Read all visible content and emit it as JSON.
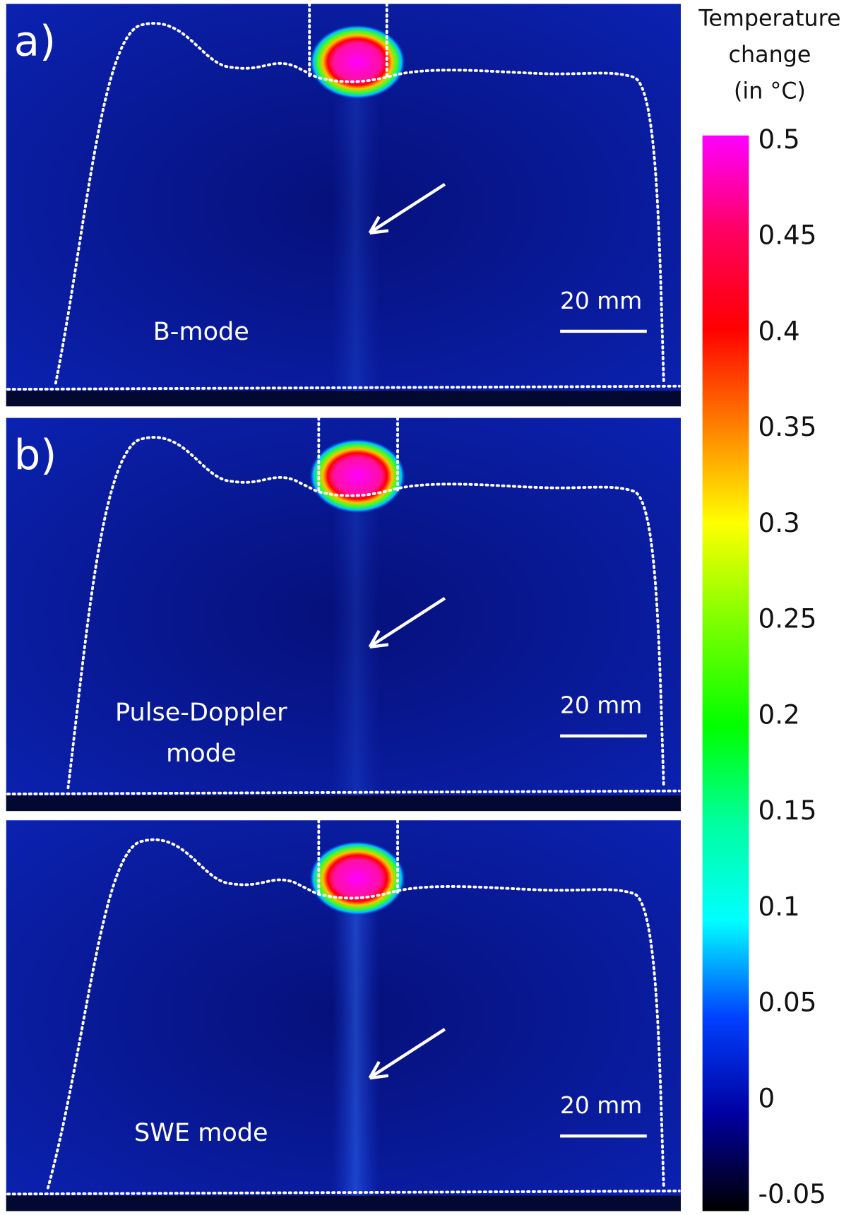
{
  "panels": [
    {
      "label": "a)",
      "mode": [
        "B-mode"
      ],
      "scale_bar": "20 mm"
    },
    {
      "label": "b)",
      "mode": [
        "Pulse-Doppler",
        "mode"
      ],
      "scale_bar": "20 mm"
    },
    {
      "mode": [
        "SWE mode"
      ],
      "scale_bar": "20 mm"
    }
  ],
  "colorbar": {
    "title": [
      "Temperature",
      "change",
      "(in °C)"
    ],
    "ticks": [
      0.5,
      0.45,
      0.4,
      0.35,
      0.3,
      0.25,
      0.2,
      0.15,
      0.1,
      0.05,
      0,
      -0.05
    ]
  }
}
